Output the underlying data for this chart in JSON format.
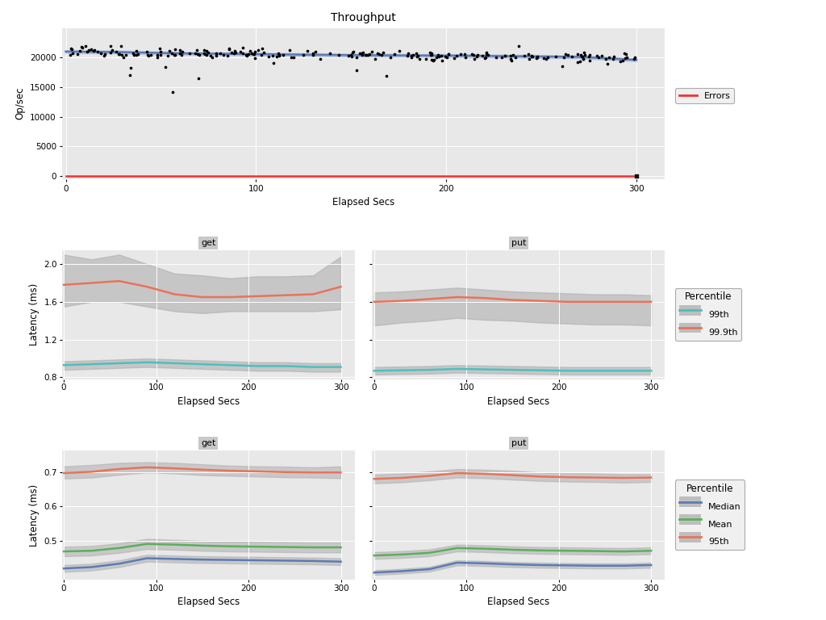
{
  "title": "Throughput",
  "xlabel": "Elapsed Secs",
  "ylabel_throughput": "Op/sec",
  "ylabel_latency": "Latency (ms)",
  "throughput": {
    "x_smooth": [
      0,
      30,
      60,
      90,
      120,
      150,
      180,
      210,
      240,
      270,
      300
    ],
    "y_smooth": [
      21000,
      20900,
      20700,
      20600,
      20500,
      20400,
      20350,
      20300,
      20200,
      20100,
      19600
    ],
    "y_smooth_upper": [
      21250,
      21150,
      20950,
      20850,
      20750,
      20650,
      20600,
      20550,
      20450,
      20350,
      19850
    ],
    "y_smooth_lower": [
      20750,
      20650,
      20450,
      20350,
      20250,
      20150,
      20100,
      20050,
      19950,
      19850,
      19350
    ],
    "ylim": [
      -500,
      25000
    ],
    "yticks": [
      0,
      5000,
      10000,
      15000,
      20000
    ],
    "scatter_color": "#000000",
    "smooth_color": "#5B7BB5",
    "smooth_band_color": "#9DB4D9",
    "error_color": "#EE3333",
    "bg_color": "#E8E8E8"
  },
  "latency_high": {
    "ylim": [
      0.78,
      2.15
    ],
    "yticks": [
      0.8,
      1.2,
      1.6,
      2.0
    ],
    "get": {
      "p999_y": [
        1.78,
        1.8,
        1.82,
        1.76,
        1.68,
        1.65,
        1.65,
        1.66,
        1.67,
        1.68,
        1.76
      ],
      "p999_upper": [
        2.1,
        2.05,
        2.1,
        2.0,
        1.9,
        1.88,
        1.85,
        1.87,
        1.87,
        1.88,
        2.08
      ],
      "p999_lower": [
        1.55,
        1.6,
        1.6,
        1.55,
        1.5,
        1.48,
        1.5,
        1.5,
        1.5,
        1.5,
        1.52
      ],
      "p99_y": [
        0.93,
        0.94,
        0.95,
        0.96,
        0.95,
        0.94,
        0.93,
        0.92,
        0.92,
        0.91,
        0.91
      ],
      "p99_upper": [
        0.97,
        0.98,
        0.99,
        1.0,
        0.99,
        0.98,
        0.97,
        0.96,
        0.96,
        0.95,
        0.95
      ],
      "p99_lower": [
        0.88,
        0.89,
        0.9,
        0.91,
        0.9,
        0.89,
        0.88,
        0.87,
        0.87,
        0.86,
        0.86
      ]
    },
    "put": {
      "p999_y": [
        1.6,
        1.61,
        1.63,
        1.65,
        1.64,
        1.62,
        1.61,
        1.6,
        1.6,
        1.6,
        1.6
      ],
      "p999_upper": [
        1.7,
        1.71,
        1.73,
        1.75,
        1.73,
        1.71,
        1.7,
        1.69,
        1.68,
        1.68,
        1.67
      ],
      "p999_lower": [
        1.35,
        1.38,
        1.4,
        1.43,
        1.41,
        1.4,
        1.38,
        1.37,
        1.36,
        1.36,
        1.35
      ],
      "p99_y": [
        0.87,
        0.875,
        0.88,
        0.89,
        0.885,
        0.88,
        0.875,
        0.87,
        0.87,
        0.87,
        0.87
      ],
      "p99_upper": [
        0.91,
        0.915,
        0.92,
        0.93,
        0.925,
        0.92,
        0.915,
        0.91,
        0.91,
        0.91,
        0.91
      ],
      "p99_lower": [
        0.83,
        0.835,
        0.84,
        0.85,
        0.845,
        0.84,
        0.835,
        0.83,
        0.83,
        0.83,
        0.83
      ]
    },
    "color_p999": "#E8735A",
    "color_p99": "#4DBFBF",
    "color_band": "#AAAAAA",
    "bg_color": "#E8E8E8"
  },
  "latency_low": {
    "ylim": [
      0.385,
      0.765
    ],
    "yticks": [
      0.5,
      0.6,
      0.7
    ],
    "get": {
      "p95_y": [
        0.698,
        0.702,
        0.71,
        0.715,
        0.712,
        0.708,
        0.705,
        0.703,
        0.701,
        0.7,
        0.7
      ],
      "p95_upper": [
        0.718,
        0.722,
        0.728,
        0.73,
        0.728,
        0.724,
        0.72,
        0.718,
        0.717,
        0.715,
        0.718
      ],
      "p95_lower": [
        0.682,
        0.685,
        0.693,
        0.7,
        0.697,
        0.692,
        0.69,
        0.688,
        0.686,
        0.685,
        0.683
      ],
      "mean_y": [
        0.468,
        0.47,
        0.478,
        0.49,
        0.488,
        0.485,
        0.483,
        0.482,
        0.481,
        0.48,
        0.48
      ],
      "mean_upper": [
        0.482,
        0.484,
        0.492,
        0.505,
        0.502,
        0.499,
        0.497,
        0.496,
        0.495,
        0.494,
        0.494
      ],
      "mean_lower": [
        0.454,
        0.456,
        0.464,
        0.475,
        0.473,
        0.47,
        0.468,
        0.467,
        0.466,
        0.465,
        0.465
      ],
      "median_y": [
        0.418,
        0.422,
        0.432,
        0.448,
        0.446,
        0.444,
        0.443,
        0.442,
        0.441,
        0.44,
        0.438
      ],
      "median_upper": [
        0.428,
        0.432,
        0.442,
        0.458,
        0.456,
        0.454,
        0.453,
        0.452,
        0.451,
        0.45,
        0.448
      ],
      "median_lower": [
        0.408,
        0.412,
        0.422,
        0.438,
        0.436,
        0.434,
        0.433,
        0.432,
        0.431,
        0.43,
        0.428
      ]
    },
    "put": {
      "p95_y": [
        0.681,
        0.684,
        0.69,
        0.698,
        0.696,
        0.692,
        0.688,
        0.686,
        0.685,
        0.684,
        0.685
      ],
      "p95_upper": [
        0.694,
        0.697,
        0.703,
        0.71,
        0.708,
        0.705,
        0.7,
        0.698,
        0.697,
        0.695,
        0.695
      ],
      "p95_lower": [
        0.668,
        0.671,
        0.677,
        0.685,
        0.683,
        0.679,
        0.675,
        0.673,
        0.672,
        0.67,
        0.672
      ],
      "mean_y": [
        0.456,
        0.459,
        0.464,
        0.478,
        0.476,
        0.473,
        0.471,
        0.47,
        0.469,
        0.468,
        0.47
      ],
      "mean_upper": [
        0.466,
        0.469,
        0.474,
        0.488,
        0.486,
        0.483,
        0.481,
        0.48,
        0.479,
        0.478,
        0.48
      ],
      "mean_lower": [
        0.446,
        0.449,
        0.454,
        0.468,
        0.466,
        0.463,
        0.461,
        0.46,
        0.459,
        0.458,
        0.46
      ],
      "median_y": [
        0.406,
        0.41,
        0.416,
        0.435,
        0.433,
        0.43,
        0.428,
        0.427,
        0.426,
        0.426,
        0.428
      ],
      "median_upper": [
        0.413,
        0.417,
        0.423,
        0.442,
        0.44,
        0.437,
        0.435,
        0.434,
        0.433,
        0.433,
        0.435
      ],
      "median_lower": [
        0.399,
        0.403,
        0.409,
        0.427,
        0.425,
        0.422,
        0.42,
        0.419,
        0.418,
        0.418,
        0.42
      ]
    },
    "color_p95": "#E8735A",
    "color_mean": "#5BAF5B",
    "color_median": "#5B7BB5",
    "color_band": "#AAAAAA",
    "bg_color": "#E8E8E8"
  },
  "panel_bg": "#E8E8E8",
  "fig_bg": "#FFFFFF",
  "grid_color": "#FFFFFF",
  "facet_bg": "#C8C8C8"
}
